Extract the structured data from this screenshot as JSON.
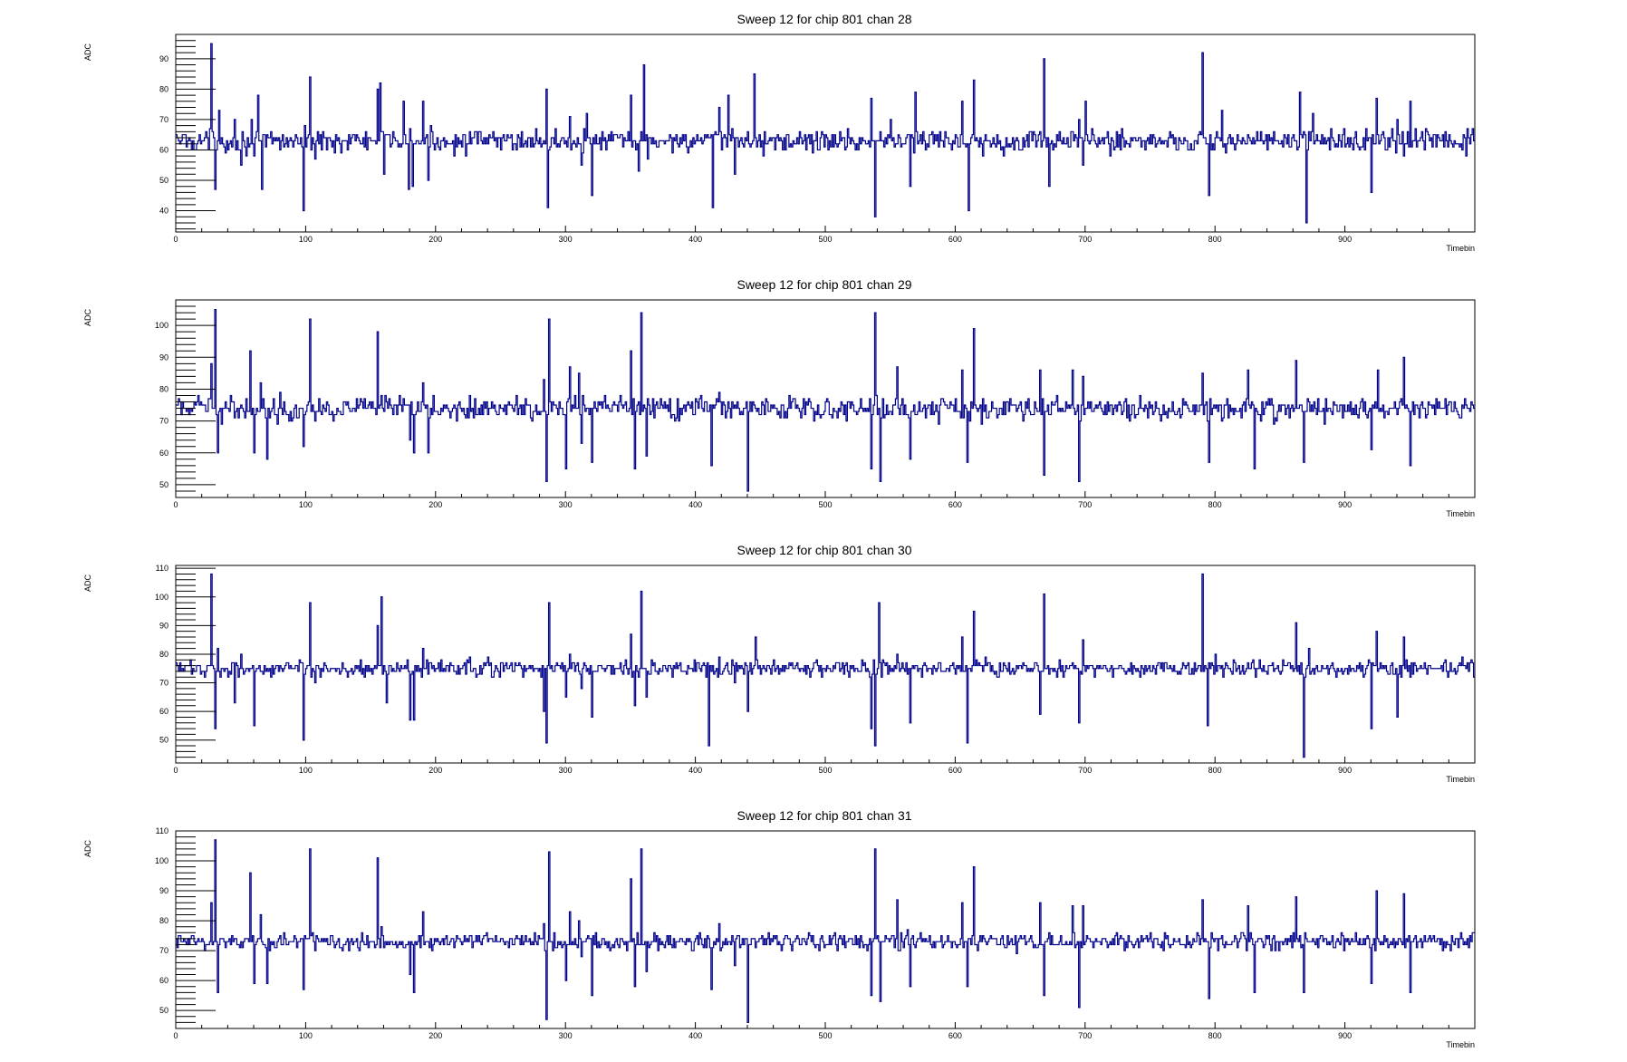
{
  "chart_data": [
    {
      "type": "line",
      "title": "Sweep 12 for chip 801 chan 28",
      "xlabel": "Timebin",
      "ylabel": "ADC",
      "xlim": [
        0,
        1000
      ],
      "ylim": [
        33,
        98
      ],
      "xticks": [
        0,
        100,
        200,
        300,
        400,
        500,
        600,
        700,
        800,
        900
      ],
      "yticks": [
        40,
        50,
        60,
        70,
        80,
        90
      ],
      "baseline": 63,
      "noise": 2.2,
      "grid": false,
      "series": [
        {
          "values_note": "",
          "spikes": [
            [
              27,
              95
            ],
            [
              30,
              47
            ],
            [
              33,
              73
            ],
            [
              45,
              70
            ],
            [
              50,
              55
            ],
            [
              58,
              70
            ],
            [
              60,
              58
            ],
            [
              63,
              78
            ],
            [
              66,
              47
            ],
            [
              98,
              40
            ],
            [
              103,
              84
            ],
            [
              107,
              57
            ],
            [
              155,
              80
            ],
            [
              157,
              82
            ],
            [
              160,
              52
            ],
            [
              175,
              76
            ],
            [
              179,
              47
            ],
            [
              182,
              48
            ],
            [
              190,
              76
            ],
            [
              194,
              50
            ],
            [
              285,
              80
            ],
            [
              286,
              41
            ],
            [
              303,
              71
            ],
            [
              312,
              55
            ],
            [
              316,
              72
            ],
            [
              320,
              45
            ],
            [
              350,
              78
            ],
            [
              356,
              53
            ],
            [
              360,
              88
            ],
            [
              363,
              57
            ],
            [
              413,
              41
            ],
            [
              418,
              74
            ],
            [
              425,
              78
            ],
            [
              430,
              52
            ],
            [
              445,
              85
            ],
            [
              452,
              58
            ],
            [
              535,
              77
            ],
            [
              538,
              38
            ],
            [
              550,
              70
            ],
            [
              565,
              48
            ],
            [
              569,
              79
            ],
            [
              605,
              76
            ],
            [
              610,
              40
            ],
            [
              614,
              83
            ],
            [
              621,
              58
            ],
            [
              665,
              66
            ],
            [
              668,
              90
            ],
            [
              672,
              48
            ],
            [
              695,
              70
            ],
            [
              698,
              55
            ],
            [
              700,
              76
            ],
            [
              790,
              92
            ],
            [
              795,
              45
            ],
            [
              805,
              73
            ],
            [
              865,
              79
            ],
            [
              870,
              36
            ],
            [
              875,
              72
            ],
            [
              920,
              46
            ],
            [
              924,
              77
            ],
            [
              940,
              70
            ],
            [
              945,
              58
            ],
            [
              950,
              76
            ]
          ]
        }
      ]
    },
    {
      "type": "line",
      "title": "Sweep 12 for chip 801 chan 29",
      "xlabel": "Timebin",
      "ylabel": "ADC",
      "xlim": [
        0,
        1000
      ],
      "ylim": [
        46,
        108
      ],
      "xticks": [
        0,
        100,
        200,
        300,
        400,
        500,
        600,
        700,
        800,
        900
      ],
      "yticks": [
        50,
        60,
        70,
        80,
        90,
        100
      ],
      "baseline": 74,
      "noise": 2.2,
      "grid": false,
      "series": [
        {
          "spikes": [
            [
              27,
              88
            ],
            [
              30,
              105
            ],
            [
              32,
              60
            ],
            [
              57,
              92
            ],
            [
              60,
              60
            ],
            [
              65,
              82
            ],
            [
              70,
              58
            ],
            [
              98,
              62
            ],
            [
              103,
              102
            ],
            [
              107,
              70
            ],
            [
              155,
              98
            ],
            [
              158,
              78
            ],
            [
              180,
              64
            ],
            [
              183,
              60
            ],
            [
              190,
              82
            ],
            [
              194,
              60
            ],
            [
              283,
              83
            ],
            [
              285,
              51
            ],
            [
              287,
              102
            ],
            [
              300,
              55
            ],
            [
              303,
              87
            ],
            [
              310,
              85
            ],
            [
              312,
              63
            ],
            [
              320,
              57
            ],
            [
              350,
              92
            ],
            [
              353,
              55
            ],
            [
              358,
              104
            ],
            [
              362,
              59
            ],
            [
              412,
              56
            ],
            [
              418,
              79
            ],
            [
              430,
              75
            ],
            [
              440,
              48
            ],
            [
              445,
              75
            ],
            [
              535,
              55
            ],
            [
              538,
              104
            ],
            [
              542,
              51
            ],
            [
              555,
              87
            ],
            [
              565,
              58
            ],
            [
              570,
              72
            ],
            [
              605,
              86
            ],
            [
              609,
              57
            ],
            [
              614,
              99
            ],
            [
              620,
              69
            ],
            [
              665,
              86
            ],
            [
              668,
              53
            ],
            [
              690,
              86
            ],
            [
              695,
              51
            ],
            [
              698,
              84
            ],
            [
              790,
              85
            ],
            [
              795,
              57
            ],
            [
              825,
              86
            ],
            [
              830,
              55
            ],
            [
              862,
              89
            ],
            [
              868,
              57
            ],
            [
              872,
              76
            ],
            [
              920,
              61
            ],
            [
              925,
              86
            ],
            [
              940,
              72
            ],
            [
              945,
              90
            ],
            [
              950,
              56
            ]
          ]
        }
      ]
    },
    {
      "type": "line",
      "title": "Sweep 12 for chip 801 chan 30",
      "xlabel": "Timebin",
      "ylabel": "ADC",
      "xlim": [
        0,
        1000
      ],
      "ylim": [
        42,
        111
      ],
      "xticks": [
        0,
        100,
        200,
        300,
        400,
        500,
        600,
        700,
        800,
        900
      ],
      "yticks": [
        50,
        60,
        70,
        80,
        90,
        100,
        110
      ],
      "baseline": 75,
      "noise": 1.8,
      "grid": false,
      "series": [
        {
          "spikes": [
            [
              27,
              108
            ],
            [
              30,
              54
            ],
            [
              32,
              82
            ],
            [
              45,
              63
            ],
            [
              50,
              80
            ],
            [
              60,
              55
            ],
            [
              98,
              50
            ],
            [
              103,
              98
            ],
            [
              107,
              70
            ],
            [
              155,
              90
            ],
            [
              158,
              100
            ],
            [
              162,
              63
            ],
            [
              180,
              57
            ],
            [
              183,
              57
            ],
            [
              190,
              82
            ],
            [
              283,
              60
            ],
            [
              285,
              49
            ],
            [
              287,
              98
            ],
            [
              300,
              65
            ],
            [
              303,
              80
            ],
            [
              312,
              68
            ],
            [
              320,
              58
            ],
            [
              350,
              87
            ],
            [
              353,
              62
            ],
            [
              358,
              102
            ],
            [
              362,
              65
            ],
            [
              410,
              48
            ],
            [
              418,
              79
            ],
            [
              430,
              70
            ],
            [
              440,
              60
            ],
            [
              446,
              86
            ],
            [
              535,
              54
            ],
            [
              538,
              48
            ],
            [
              541,
              98
            ],
            [
              555,
              80
            ],
            [
              565,
              56
            ],
            [
              605,
              86
            ],
            [
              609,
              49
            ],
            [
              614,
              95
            ],
            [
              665,
              59
            ],
            [
              668,
              101
            ],
            [
              672,
              73
            ],
            [
              695,
              56
            ],
            [
              698,
              85
            ],
            [
              790,
              108
            ],
            [
              794,
              55
            ],
            [
              800,
              80
            ],
            [
              862,
              91
            ],
            [
              868,
              44
            ],
            [
              872,
              82
            ],
            [
              920,
              54
            ],
            [
              924,
              88
            ],
            [
              940,
              58
            ],
            [
              945,
              86
            ],
            [
              950,
              72
            ]
          ]
        }
      ]
    },
    {
      "type": "line",
      "title": "Sweep 12 for chip 801 chan 31",
      "xlabel": "Timebin",
      "ylabel": "ADC",
      "xlim": [
        0,
        1000
      ],
      "ylim": [
        44,
        110
      ],
      "xticks": [
        0,
        100,
        200,
        300,
        400,
        500,
        600,
        700,
        800,
        900
      ],
      "yticks": [
        50,
        60,
        70,
        80,
        90,
        100,
        110
      ],
      "baseline": 73,
      "noise": 1.8,
      "grid": false,
      "series": [
        {
          "spikes": [
            [
              27,
              86
            ],
            [
              30,
              107
            ],
            [
              32,
              56
            ],
            [
              57,
              96
            ],
            [
              60,
              59
            ],
            [
              65,
              82
            ],
            [
              70,
              59
            ],
            [
              98,
              57
            ],
            [
              103,
              104
            ],
            [
              107,
              70
            ],
            [
              155,
              101
            ],
            [
              158,
              78
            ],
            [
              180,
              62
            ],
            [
              183,
              56
            ],
            [
              190,
              83
            ],
            [
              283,
              79
            ],
            [
              285,
              47
            ],
            [
              287,
              103
            ],
            [
              300,
              60
            ],
            [
              303,
              83
            ],
            [
              310,
              80
            ],
            [
              312,
              68
            ],
            [
              320,
              55
            ],
            [
              350,
              94
            ],
            [
              353,
              58
            ],
            [
              358,
              104
            ],
            [
              362,
              63
            ],
            [
              412,
              57
            ],
            [
              418,
              79
            ],
            [
              430,
              65
            ],
            [
              440,
              46
            ],
            [
              445,
              74
            ],
            [
              535,
              55
            ],
            [
              538,
              104
            ],
            [
              542,
              53
            ],
            [
              555,
              87
            ],
            [
              565,
              58
            ],
            [
              605,
              86
            ],
            [
              609,
              58
            ],
            [
              614,
              98
            ],
            [
              665,
              86
            ],
            [
              668,
              55
            ],
            [
              690,
              85
            ],
            [
              695,
              51
            ],
            [
              698,
              85
            ],
            [
              790,
              87
            ],
            [
              795,
              54
            ],
            [
              825,
              85
            ],
            [
              830,
              56
            ],
            [
              862,
              88
            ],
            [
              868,
              56
            ],
            [
              872,
              73
            ],
            [
              920,
              59
            ],
            [
              924,
              90
            ],
            [
              940,
              72
            ],
            [
              945,
              89
            ],
            [
              950,
              56
            ]
          ]
        }
      ]
    }
  ]
}
